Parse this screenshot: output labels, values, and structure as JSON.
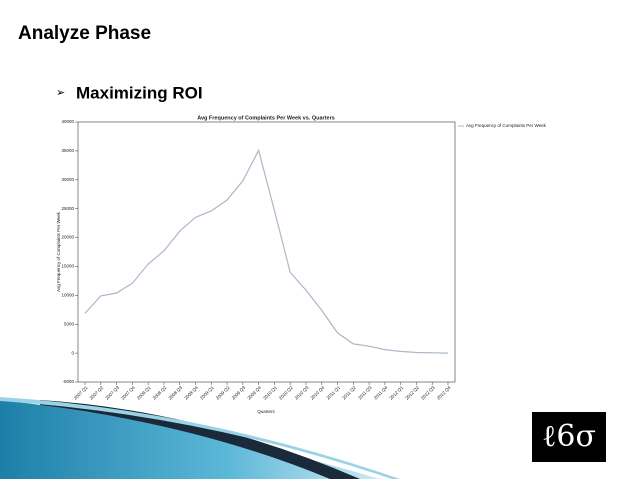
{
  "slide": {
    "title": "Analyze Phase",
    "bullet": "Maximizing ROI",
    "logo": "ℓ6σ"
  },
  "chart_data": {
    "type": "line",
    "title": "Avg Frequency of Complaints Per Week vs. Quarters",
    "x_label": "Quarters",
    "y_label": "Avg Frequency of Complaints Per Week",
    "categories": [
      "2007 Q1",
      "2007 Q2",
      "2007 Q3",
      "2007 Q4",
      "2008 Q1",
      "2008 Q2",
      "2008 Q3",
      "2008 Q4",
      "2009 Q1",
      "2009 Q2",
      "2009 Q3",
      "2009 Q4",
      "2010 Q1",
      "2010 Q2",
      "2010 Q3",
      "2010 Q4",
      "2011 Q1",
      "2011 Q2",
      "2011 Q3",
      "2011 Q4",
      "2012 Q1",
      "2012 Q2",
      "2012 Q3",
      "2012 Q4"
    ],
    "series": [
      {
        "name": "Avg Frequency of Complaints Per Week",
        "color": "#aab8c8",
        "values": [
          6900,
          9900,
          10400,
          12100,
          15400,
          17700,
          21100,
          23500,
          24600,
          26500,
          29800,
          35100,
          24700,
          14000,
          10900,
          7400,
          3500,
          1600,
          1200,
          600,
          300,
          100,
          50,
          0
        ]
      }
    ],
    "ylim": [
      -5000,
      40000
    ],
    "yticks": [
      -5000,
      0,
      5000,
      10000,
      15000,
      20000,
      25000,
      30000,
      35000,
      40000
    ],
    "legend": "right"
  }
}
